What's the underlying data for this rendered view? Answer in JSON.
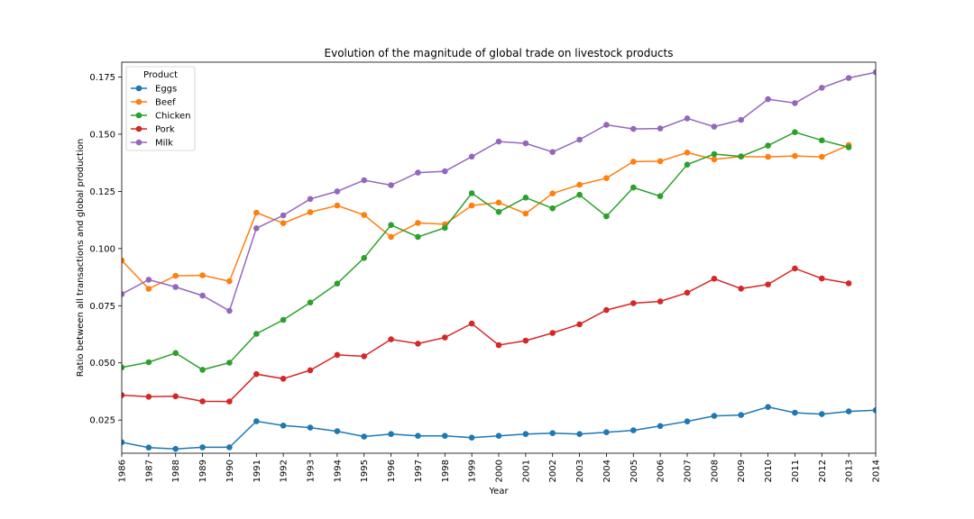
{
  "chart_data": {
    "type": "line",
    "title": "Evolution of the magnitude of global trade on livestock products",
    "xlabel": "Year",
    "ylabel": "Ratio between all transactions and global production",
    "xlim": [
      1986,
      2014
    ],
    "ylim": [
      0.0105,
      0.1815
    ],
    "yticks": [
      "0.025",
      "0.050",
      "0.075",
      "0.100",
      "0.125",
      "0.150",
      "0.175"
    ],
    "ytick_values": [
      0.025,
      0.05,
      0.075,
      0.1,
      0.125,
      0.15,
      0.175
    ],
    "x": [
      1986,
      1987,
      1988,
      1989,
      1990,
      1991,
      1992,
      1993,
      1994,
      1995,
      1996,
      1997,
      1998,
      1999,
      2000,
      2001,
      2002,
      2003,
      2004,
      2005,
      2006,
      2007,
      2008,
      2009,
      2010,
      2011,
      2012,
      2013,
      2014
    ],
    "legend_title": "Product",
    "legend_position": "top-left",
    "grid": false,
    "series": [
      {
        "name": "Eggs",
        "color": "#1f77b4",
        "values": [
          0.0153,
          0.013,
          0.0124,
          0.0131,
          0.0131,
          0.0245,
          0.0226,
          0.0217,
          0.0201,
          0.0178,
          0.0189,
          0.0181,
          0.0181,
          0.0173,
          0.0181,
          0.0189,
          0.0193,
          0.0189,
          0.0197,
          0.0205,
          0.0224,
          0.0244,
          0.0268,
          0.0272,
          0.0307,
          0.0282,
          0.0276,
          0.0288,
          0.0293
        ]
      },
      {
        "name": "Beef",
        "color": "#ff7f0e",
        "values": [
          0.0948,
          0.0824,
          0.0881,
          0.0883,
          0.0857,
          0.1157,
          0.1111,
          0.1159,
          0.1188,
          0.1147,
          0.1051,
          0.1112,
          0.1106,
          0.1188,
          0.1201,
          0.1153,
          0.1241,
          0.1279,
          0.1308,
          0.138,
          0.1382,
          0.142,
          0.139,
          0.1402,
          0.1401,
          0.1405,
          0.1401,
          0.1452,
          null
        ]
      },
      {
        "name": "Chicken",
        "color": "#2ca02c",
        "values": [
          0.048,
          0.0503,
          0.0543,
          0.047,
          0.0501,
          0.0627,
          0.0688,
          0.0764,
          0.0847,
          0.0959,
          0.1103,
          0.1051,
          0.1091,
          0.1242,
          0.116,
          0.1223,
          0.1176,
          0.1235,
          0.1141,
          0.1267,
          0.1229,
          0.1367,
          0.1413,
          0.1403,
          0.145,
          0.1509,
          0.1473,
          0.1443,
          null
        ]
      },
      {
        "name": "Pork",
        "color": "#d62728",
        "values": [
          0.0359,
          0.0352,
          0.0354,
          0.0332,
          0.0331,
          0.0451,
          0.0431,
          0.0468,
          0.0535,
          0.0529,
          0.0603,
          0.0584,
          0.0611,
          0.0672,
          0.0578,
          0.0597,
          0.0631,
          0.0669,
          0.0731,
          0.0761,
          0.0769,
          0.0807,
          0.0868,
          0.0825,
          0.0843,
          0.0913,
          0.0869,
          0.0848,
          null
        ]
      },
      {
        "name": "Milk",
        "color": "#9467bd",
        "values": [
          0.0801,
          0.0864,
          0.0832,
          0.0794,
          0.0728,
          0.1089,
          0.1145,
          0.1217,
          0.125,
          0.1299,
          0.1277,
          0.1332,
          0.1338,
          0.1402,
          0.1468,
          0.146,
          0.1422,
          0.1476,
          0.1541,
          0.1523,
          0.1525,
          0.1569,
          0.1533,
          0.1563,
          0.1653,
          0.1636,
          0.1703,
          0.1746,
          0.1771
        ]
      }
    ]
  }
}
